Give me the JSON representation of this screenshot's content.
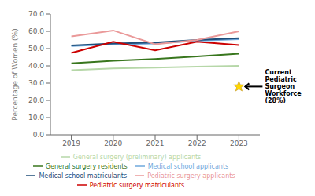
{
  "chart_data": {
    "type": "line",
    "x": [
      2019,
      2020,
      2021,
      2022,
      2023
    ],
    "xlim": [
      2018.5,
      2023.5
    ],
    "xticks": [
      2019,
      2020,
      2021,
      2022,
      2023
    ],
    "ylim": [
      0,
      70
    ],
    "yticks": [
      {
        "value": 0,
        "label": "0.0"
      },
      {
        "value": 10,
        "label": "10.0"
      },
      {
        "value": 20,
        "label": "20.0"
      },
      {
        "value": 30,
        "label": "30.0"
      },
      {
        "value": 40,
        "label": "40.0"
      },
      {
        "value": 50,
        "label": "50.0"
      },
      {
        "value": 60,
        "label": "60.0"
      },
      {
        "value": 70,
        "label": "70.0"
      }
    ],
    "ylabel": "Percentage of Women (%)",
    "series": [
      {
        "name": "Medical school applicants",
        "color": "#6fa8dc",
        "values": [
          51.5,
          52.5,
          53.0,
          54.5,
          55.5
        ]
      },
      {
        "name": "Medical school matriculants",
        "color": "#1f4e79",
        "values": [
          51.8,
          53.0,
          53.5,
          55.0,
          56.0
        ]
      },
      {
        "name": "General surgery (preliminary) applicants",
        "color": "#b6d7a8",
        "values": [
          37.5,
          38.5,
          39.0,
          39.5,
          40.0
        ]
      },
      {
        "name": "General surgery residents",
        "color": "#38761d",
        "values": [
          41.5,
          43.0,
          44.0,
          45.5,
          47.0
        ]
      },
      {
        "name": "Pediatric surgery applicants",
        "color": "#ea9999",
        "values": [
          57.0,
          60.5,
          52.5,
          55.0,
          60.0
        ]
      },
      {
        "name": "Pediatric surgery matriculants",
        "color": "#cc0000",
        "values": [
          47.5,
          54.0,
          49.0,
          54.0,
          52.0
        ]
      }
    ],
    "annotations": [
      {
        "x": 2023,
        "y": 28,
        "text": "Current\nPediatric\nSurgeon\nWorkforce\n(28%)",
        "marker": "star",
        "color": "#ffd700"
      }
    ],
    "legend": "bottom",
    "grid": false
  }
}
